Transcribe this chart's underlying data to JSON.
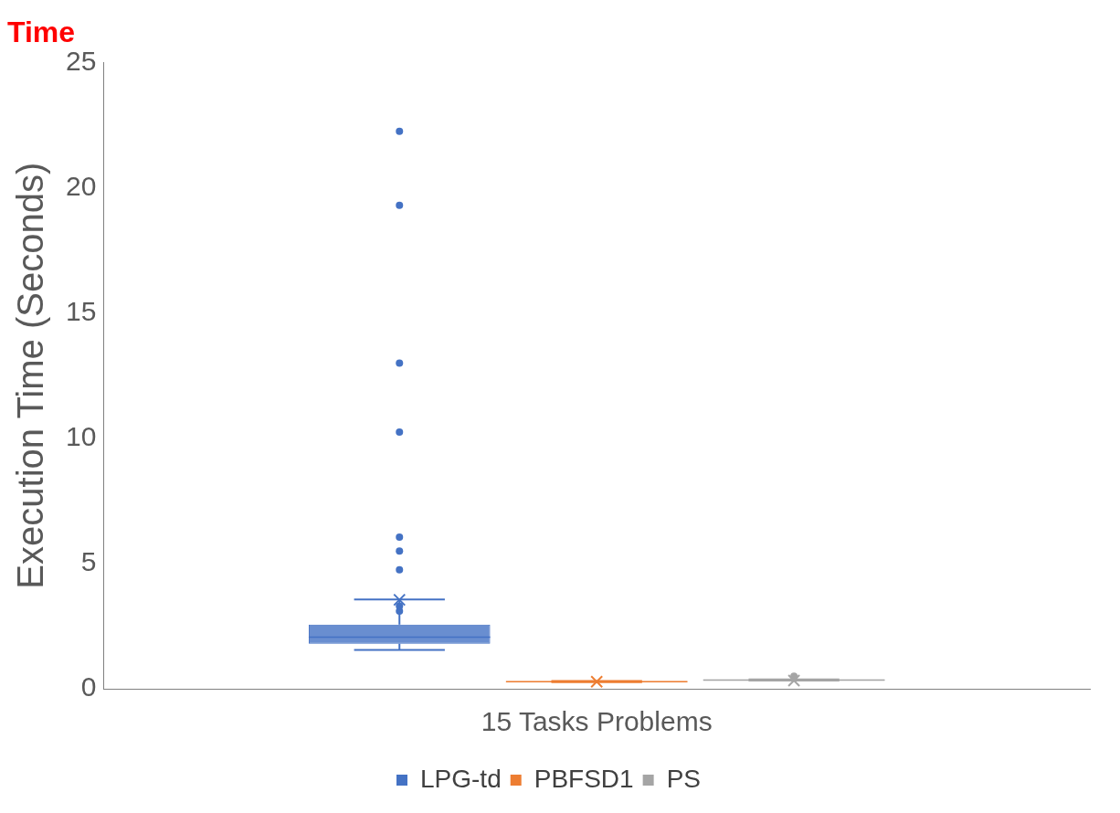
{
  "chart_data": {
    "type": "box",
    "title": "Time",
    "ylabel": "Execution Time (Seconds)",
    "categories": [
      "15 Tasks Problems"
    ],
    "ylim": [
      0,
      25
    ],
    "yticks": [
      0,
      5,
      10,
      15,
      20,
      25
    ],
    "grid": false,
    "legend": "bottom",
    "series": [
      {
        "name": "LPG-td",
        "color": "#4472c4",
        "boxes": [
          {
            "low": 1.55,
            "q1": 1.8,
            "median": 2.06,
            "q3": 2.56,
            "high": 3.56,
            "mean": 3.55,
            "outliers": [
              3.1,
              3.3,
              4.75,
              5.5,
              6.05,
              10.25,
              13.0,
              19.3,
              22.25
            ]
          }
        ]
      },
      {
        "name": "PBFSD1",
        "color": "#ed7d31",
        "boxes": [
          {
            "low": 0.26,
            "q1": 0.27,
            "median": 0.28,
            "q3": 0.3,
            "high": 0.31,
            "mean": 0.28
          }
        ]
      },
      {
        "name": "PS",
        "color": "#a5a5a5",
        "boxes": [
          {
            "low": 0.33,
            "q1": 0.33,
            "median": 0.35,
            "q3": 0.37,
            "high": 0.37,
            "mean": 0.33,
            "outliers": [
              0.5
            ]
          }
        ]
      }
    ]
  }
}
